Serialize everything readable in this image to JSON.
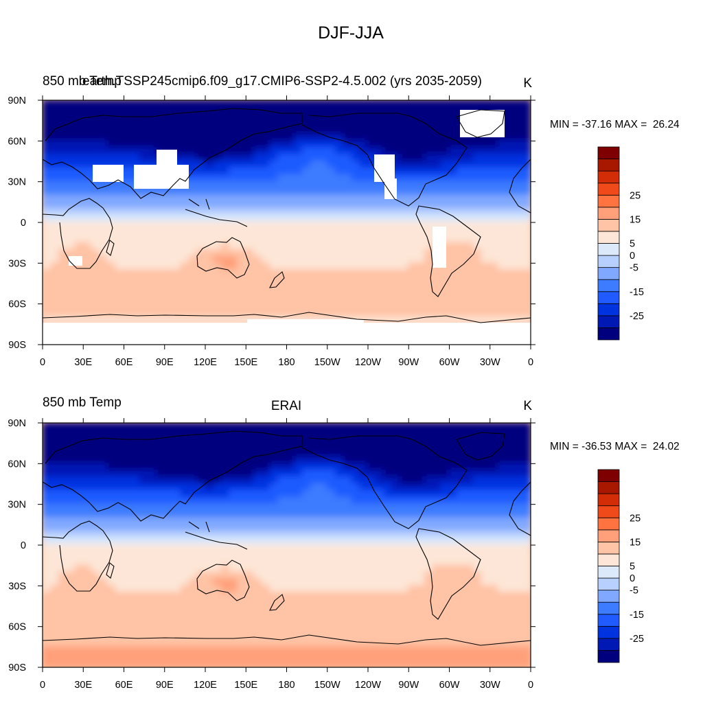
{
  "figure_title": "DJF-JJA",
  "chart_data": [
    {
      "type": "heatmap",
      "left_label": "850 mb Temp",
      "center_label": "",
      "subtitle": "earth.TSSP245cmip6.f09_g17.CMIP6-SSP2-4.5.002 (yrs 2035-2059)",
      "units": "K",
      "min_max_text": "MIN = -37.16 MAX =  26.24",
      "min": -37.16,
      "max": 26.24,
      "has_missing_land": true,
      "x_ticks": [
        "0",
        "30E",
        "60E",
        "90E",
        "120E",
        "150E",
        "180",
        "150W",
        "120W",
        "90W",
        "60W",
        "30W",
        "0"
      ],
      "y_ticks": [
        "90N",
        "60N",
        "30N",
        "0",
        "30S",
        "60S",
        "90S"
      ]
    },
    {
      "type": "heatmap",
      "left_label": "850 mb Temp",
      "center_label": "ERAI",
      "subtitle": "",
      "units": "K",
      "min_max_text": "MIN = -36.53 MAX =  24.02",
      "min": -36.53,
      "max": 24.02,
      "has_missing_land": false,
      "x_ticks": [
        "0",
        "30E",
        "60E",
        "90E",
        "120E",
        "150E",
        "180",
        "150W",
        "120W",
        "90W",
        "60W",
        "30W",
        "0"
      ],
      "y_ticks": [
        "90N",
        "60N",
        "30N",
        "0",
        "30S",
        "60S",
        "90S"
      ]
    }
  ],
  "colorbar": {
    "levels": [
      -30,
      -25,
      -20,
      -15,
      -10,
      -5,
      0,
      5,
      10,
      15,
      20,
      25,
      30
    ],
    "labels": [
      "25",
      "15",
      "5",
      "0",
      "-5",
      "-15",
      "-25"
    ],
    "label_values": [
      25,
      15,
      5,
      0,
      -5,
      -15,
      -25
    ],
    "colors": [
      "#00007f",
      "#0019b5",
      "#0033e0",
      "#1f5bff",
      "#3d7cff",
      "#80a8ff",
      "#b8d0ff",
      "#dbe9fb",
      "#fde6d7",
      "#ffc3a5",
      "#ffa07a",
      "#ff7340",
      "#f04a1a",
      "#d22d07",
      "#a81800",
      "#7f0000"
    ]
  }
}
